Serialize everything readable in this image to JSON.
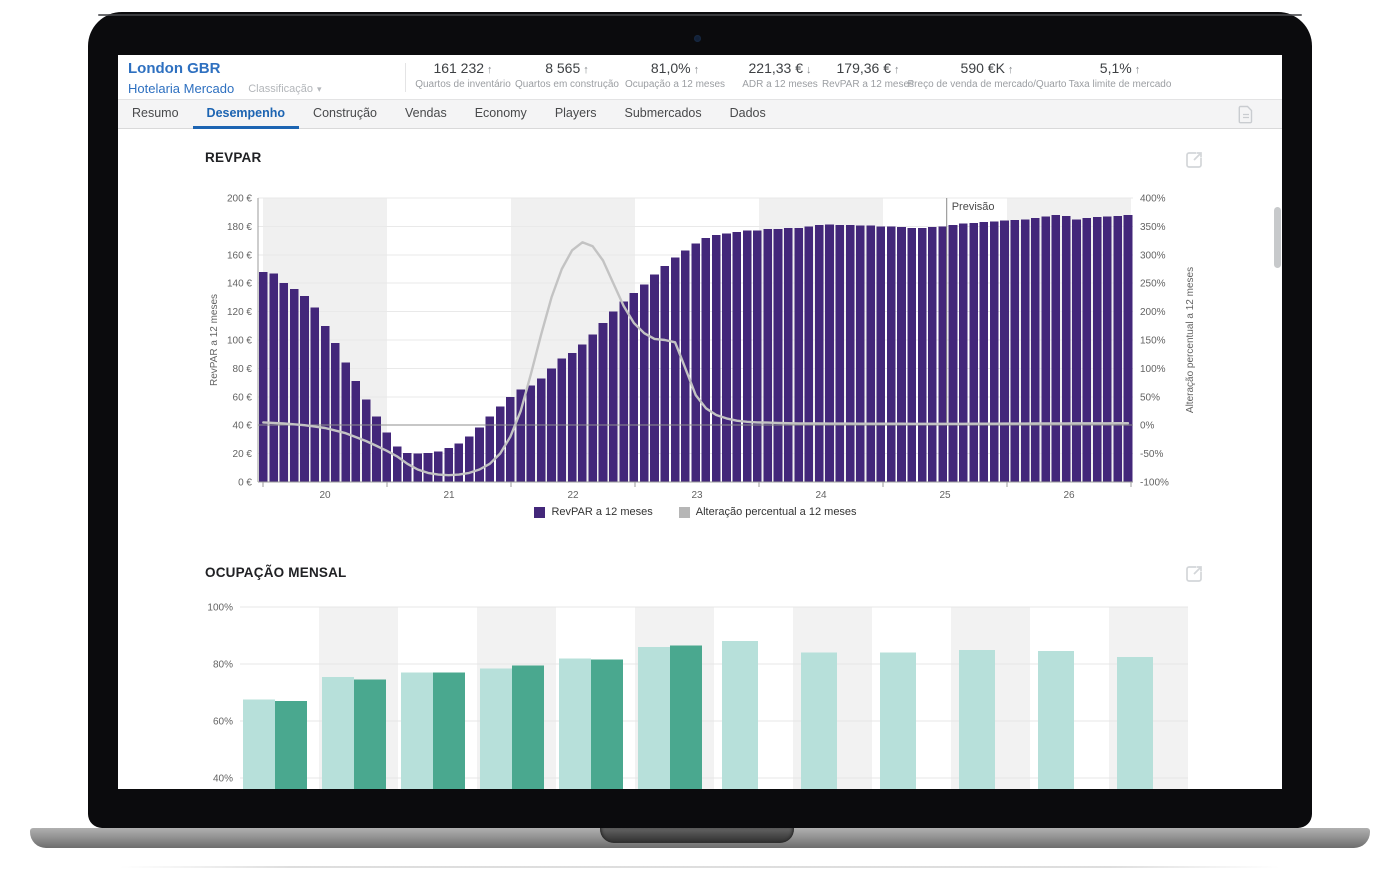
{
  "header": {
    "title": "London GBR",
    "subtitle": "Hotelaria Mercado",
    "classification_label": "Classificação",
    "stats": [
      {
        "value": "161 232",
        "trend": "up",
        "label": "Quartos de inventário"
      },
      {
        "value": "8 565",
        "trend": "up",
        "label": "Quartos em construção"
      },
      {
        "value": "81,0%",
        "trend": "up",
        "label": "Ocupação a 12 meses"
      },
      {
        "value": "221,33 €",
        "trend": "down",
        "label": "ADR a 12 meses"
      },
      {
        "value": "179,36 €",
        "trend": "up",
        "label": "RevPAR a 12 meses"
      },
      {
        "value": "590 €K",
        "trend": "up",
        "label": "Preço de venda de mercado/Quarto"
      },
      {
        "value": "5,1%",
        "trend": "up",
        "label": "Taxa limite de mercado"
      }
    ]
  },
  "tabs": {
    "items": [
      "Resumo",
      "Desempenho",
      "Construção",
      "Vendas",
      "Economy",
      "Players",
      "Submercados",
      "Dados"
    ],
    "active": "Desempenho"
  },
  "revpar_section": {
    "title": "REVPAR"
  },
  "occupancy_section": {
    "title": "OCUPAÇÃO MENSAL"
  },
  "chart_data": [
    {
      "type": "bar+line",
      "title": "REVPAR",
      "ylabel_left": "RevPAR a 12 meses",
      "ylabel_right": "Alteração percentual a 12 meses",
      "ylim_left": [
        0,
        200
      ],
      "ylim_right": [
        -100,
        400
      ],
      "left_ticks": [
        "0 €",
        "20 €",
        "40 €",
        "60 €",
        "80 €",
        "100 €",
        "120 €",
        "140 €",
        "160 €",
        "180 €",
        "200 €"
      ],
      "right_ticks": [
        "-100%",
        "-50%",
        "0%",
        "50%",
        "100%",
        "150%",
        "200%",
        "250%",
        "300%",
        "350%",
        "400%"
      ],
      "x_ticks": [
        "20",
        "21",
        "22",
        "23",
        "24",
        "25",
        "26"
      ],
      "start_month": "2019-12",
      "forecast_label": "Previsão",
      "forecast_start_index": 67,
      "legend": [
        "RevPAR a 12 meses",
        "Alteração percentual a 12 meses"
      ],
      "bar_color": "#43277a",
      "line_color": "#c3c3c3",
      "legend_line_swatch_color": "#b6b6b6",
      "band_color": "#f0f0f0",
      "bars_monthly_eur": [
        148,
        147,
        140,
        136,
        131,
        123,
        110,
        98,
        84,
        71,
        58,
        46,
        35,
        25,
        20.5,
        20,
        20.5,
        21.5,
        24,
        27,
        32,
        38.5,
        46,
        53,
        60,
        65,
        68,
        73,
        80,
        87,
        91,
        97,
        104,
        112,
        120,
        127,
        133,
        139,
        146,
        152,
        158,
        163,
        168,
        172,
        174,
        175,
        176,
        177,
        177,
        178,
        178,
        179,
        179,
        180,
        181,
        181.5,
        181,
        181,
        180.5,
        180.5,
        180,
        180,
        179.5,
        179,
        179,
        179.5,
        180,
        181,
        182,
        182.5,
        183,
        183.5,
        184,
        184.5,
        185,
        186,
        187,
        188,
        187.5,
        185,
        186,
        186.5,
        187,
        187.5,
        188
      ],
      "line_monthly_pct": [
        5,
        4,
        3,
        1.5,
        0,
        -2.5,
        -5,
        -9.5,
        -14,
        -21,
        -28,
        -36.5,
        -45,
        -55,
        -68,
        -78,
        -84,
        -87,
        -88,
        -87,
        -84,
        -78,
        -68,
        -50,
        -20,
        25,
        90,
        160,
        225,
        275,
        308,
        322,
        315,
        290,
        250,
        210,
        180,
        162,
        152,
        150,
        146,
        100,
        53,
        30,
        18,
        12,
        8,
        6,
        5,
        4.5,
        4,
        3.6,
        3.2,
        3.1,
        3,
        2.9,
        2.8,
        2.8,
        2.7,
        2.7,
        2.6,
        2.6,
        2.6,
        2.5,
        2.5,
        2.4,
        2.4,
        2.5,
        2.5,
        2.6,
        2.7,
        2.7,
        2.8,
        2.9,
        2.9,
        3,
        3.1,
        3.1,
        3.2,
        3.3,
        3.3,
        3.4,
        3.4,
        3.5,
        3.5
      ]
    },
    {
      "type": "grouped-bar",
      "title": "OCUPAÇÃO MENSAL",
      "y_ticks": [
        "40%",
        "60%",
        "80%",
        "100%"
      ],
      "ylim_visible": [
        40,
        100
      ],
      "band_color": "#f2f2f2",
      "series": [
        {
          "name": "occupancy-light",
          "color": "#b7e0da",
          "values": [
            67.5,
            75.5,
            77,
            78.5,
            82,
            86,
            88,
            84,
            84,
            85,
            84.5,
            82.5
          ]
        },
        {
          "name": "occupancy-dark",
          "color": "#4aa88f",
          "values": [
            67,
            74.5,
            77,
            79.5,
            81.5,
            86.5,
            null,
            null,
            null,
            null,
            null,
            null
          ]
        }
      ]
    }
  ]
}
